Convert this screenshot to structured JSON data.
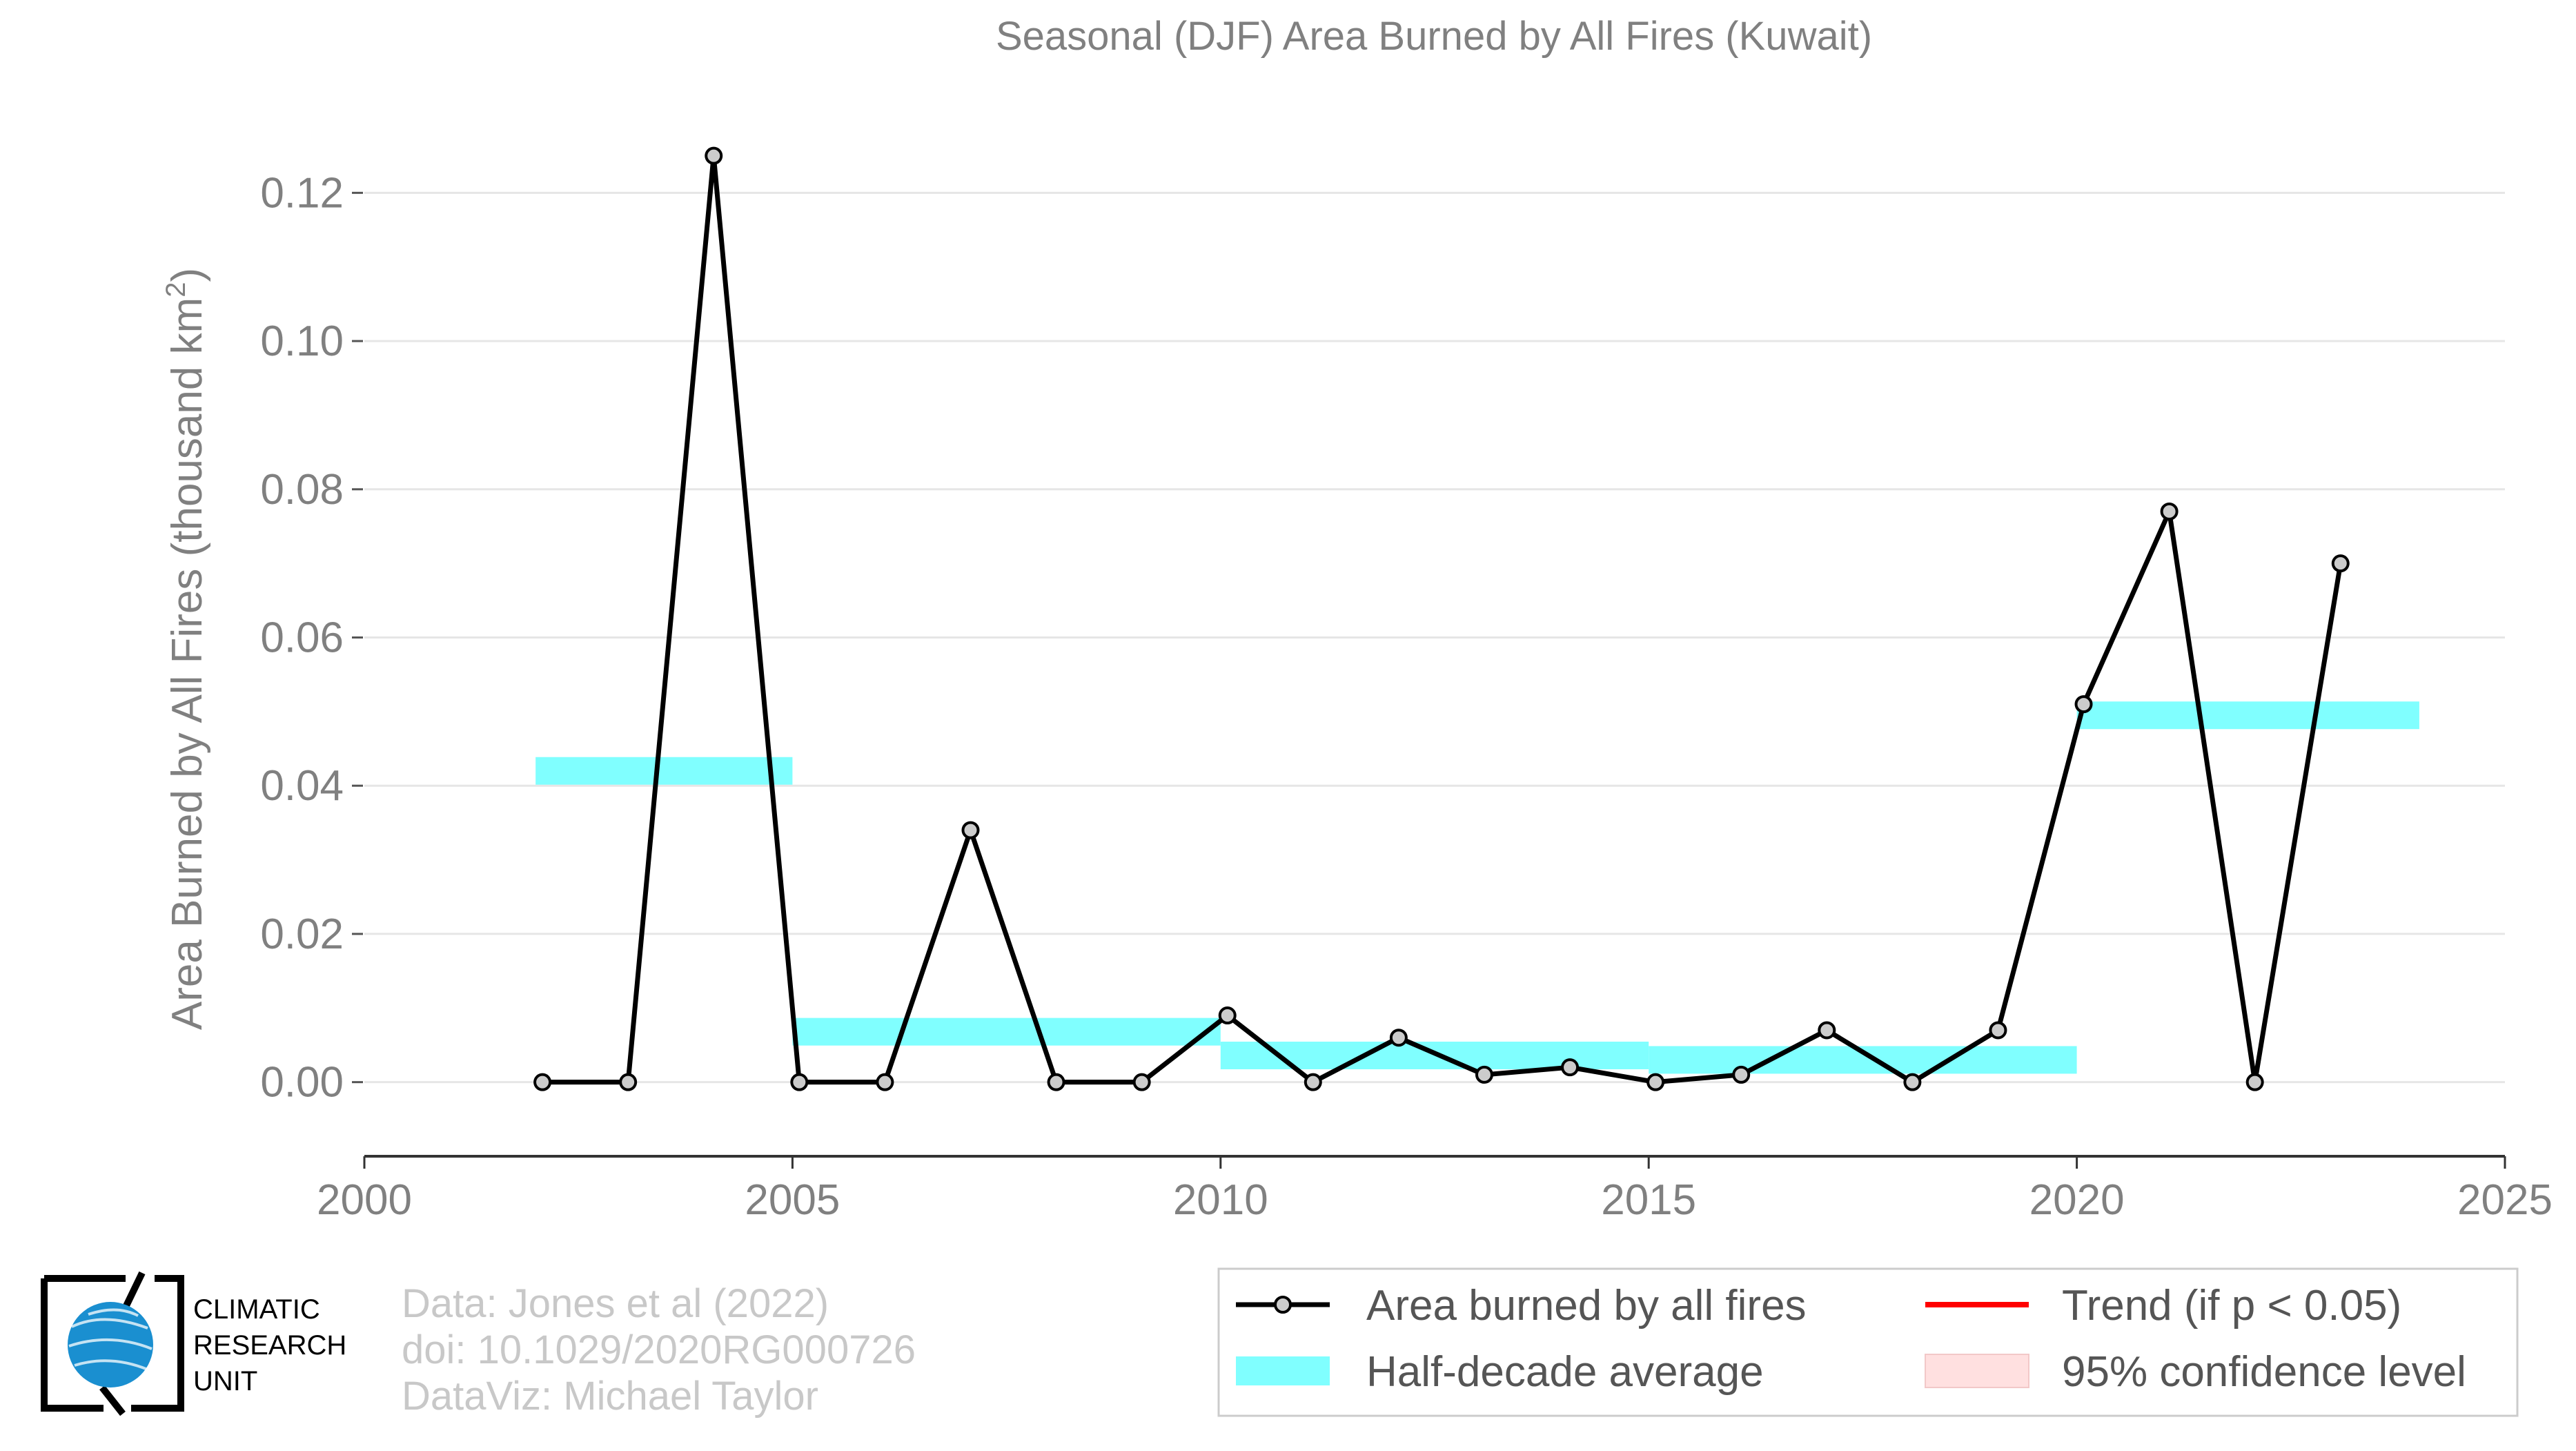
{
  "chart_data": {
    "type": "line",
    "title": "Seasonal (DJF) Area Burned by All Fires (Kuwait)",
    "ylabel": "Area Burned by All Fires (thousand km",
    "ylabel_superscript": "2",
    "ylabel_close": ")",
    "xlabel": "",
    "xlim": [
      2000,
      2025
    ],
    "ylim": [
      -0.01,
      0.13
    ],
    "x_ticks": [
      2000,
      2005,
      2010,
      2015,
      2020,
      2025
    ],
    "x_tick_labels": [
      "2000",
      "2005",
      "2010",
      "2015",
      "2020",
      "2025"
    ],
    "y_ticks": [
      0.0,
      0.02,
      0.04,
      0.06,
      0.08,
      0.1,
      0.12
    ],
    "y_tick_labels": [
      "0.00",
      "0.02",
      "0.04",
      "0.06",
      "0.08",
      "0.10",
      "0.12"
    ],
    "grid": "horizontal",
    "series": [
      {
        "name": "Area burned by all fires",
        "color": "#000000",
        "marker_fill": "#cccccc",
        "points": [
          [
            2002.08,
            0.0
          ],
          [
            2003.08,
            0.0
          ],
          [
            2004.08,
            0.125
          ],
          [
            2005.08,
            0.0
          ],
          [
            2006.08,
            0.0
          ],
          [
            2007.08,
            0.034
          ],
          [
            2008.08,
            0.0
          ],
          [
            2009.08,
            0.0
          ],
          [
            2010.08,
            0.009
          ],
          [
            2011.08,
            0.0
          ],
          [
            2012.08,
            0.006
          ],
          [
            2013.08,
            0.001
          ],
          [
            2014.08,
            0.002
          ],
          [
            2015.08,
            0.0
          ],
          [
            2016.08,
            0.001
          ],
          [
            2017.08,
            0.007
          ],
          [
            2018.08,
            0.0
          ],
          [
            2019.08,
            0.007
          ],
          [
            2020.08,
            0.051
          ],
          [
            2021.08,
            0.077
          ],
          [
            2022.08,
            0.0
          ],
          [
            2023.08,
            0.07
          ]
        ]
      }
    ],
    "half_decade_averages": {
      "name": "Half-decade average",
      "color": "#80ffff",
      "bands": [
        {
          "x0": 2002,
          "x1": 2005,
          "value": 0.042
        },
        {
          "x0": 2005,
          "x1": 2010,
          "value": 0.0068
        },
        {
          "x0": 2010,
          "x1": 2015,
          "value": 0.0036
        },
        {
          "x0": 2015,
          "x1": 2020,
          "value": 0.003
        },
        {
          "x0": 2020,
          "x1": 2024,
          "value": 0.0495
        }
      ]
    },
    "legend": {
      "placement": "bottom-right",
      "items": [
        {
          "label": "Area burned by all fires",
          "kind": "line-marker",
          "color": "#000000"
        },
        {
          "label": "Trend (if p < 0.05)",
          "kind": "line",
          "color": "#ff0000"
        },
        {
          "label": "Half-decade average",
          "kind": "band",
          "color": "#80ffff"
        },
        {
          "label": "95% confidence level",
          "kind": "band",
          "color": "#ffe0e0"
        }
      ]
    }
  },
  "credits": {
    "line1": "Data: Jones et al (2022)",
    "line2": "doi: 10.1029/2020RG000726",
    "line3": "DataViz: Michael Taylor"
  },
  "logo": {
    "line1": "CLIMATIC",
    "line2": "RESEARCH",
    "line3": "UNIT",
    "globe_color": "#1a8fd0"
  }
}
